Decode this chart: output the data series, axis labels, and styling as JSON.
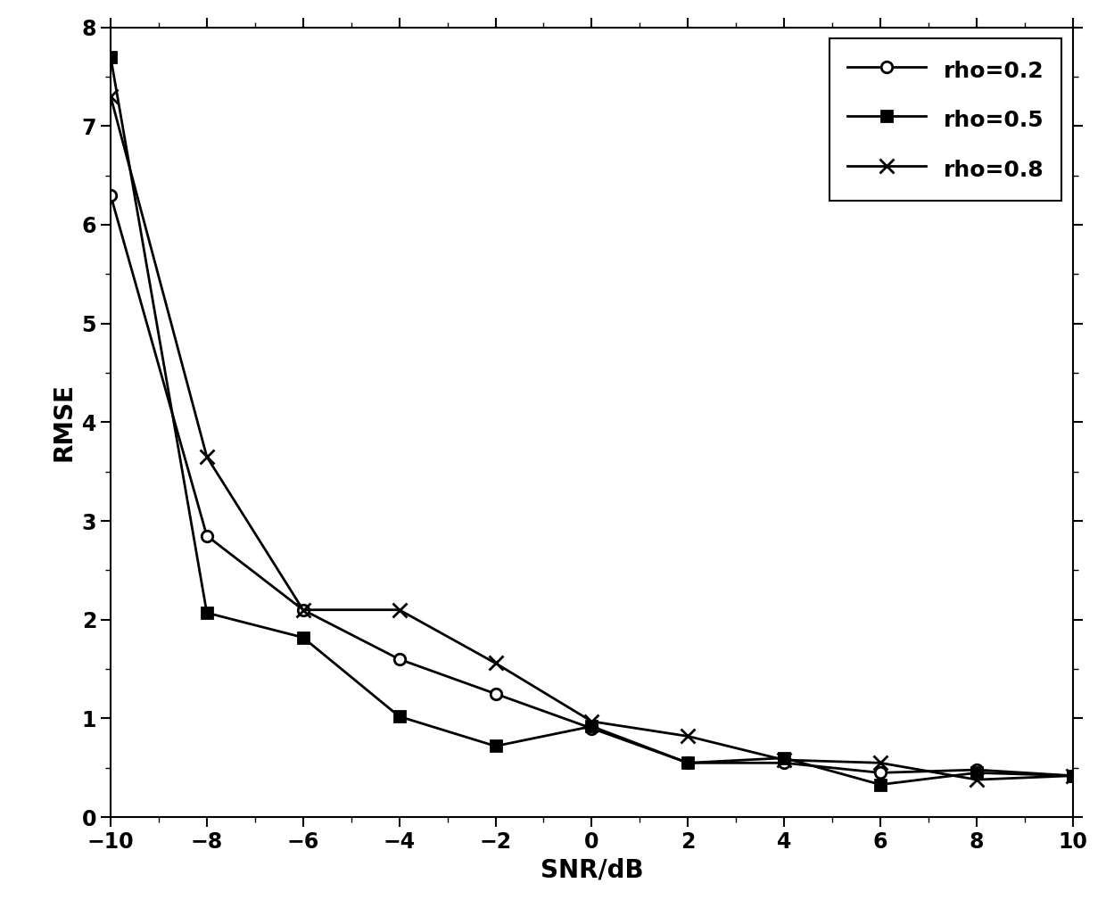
{
  "x": [
    -10,
    -8,
    -6,
    -4,
    -2,
    0,
    2,
    4,
    6,
    8,
    10
  ],
  "rho02": [
    6.3,
    2.85,
    2.1,
    1.6,
    1.25,
    0.9,
    0.55,
    0.55,
    0.45,
    0.48,
    0.42
  ],
  "rho05": [
    7.7,
    2.07,
    1.82,
    1.02,
    0.72,
    0.92,
    0.55,
    0.6,
    0.33,
    0.45,
    0.42
  ],
  "rho08": [
    7.3,
    3.65,
    2.1,
    2.1,
    1.56,
    0.97,
    0.82,
    0.58,
    0.55,
    0.38,
    0.42
  ],
  "xlabel": "SNR/dB",
  "ylabel": "RMSE",
  "xlim": [
    -10,
    10
  ],
  "ylim": [
    0,
    8
  ],
  "yticks": [
    0,
    1,
    2,
    3,
    4,
    5,
    6,
    7,
    8
  ],
  "xticks": [
    -10,
    -8,
    -6,
    -4,
    -2,
    0,
    2,
    4,
    6,
    8,
    10
  ],
  "legend_labels": [
    "rho=0.2",
    "rho=0.5",
    "rho=0.8"
  ],
  "line_color": "#000000",
  "markers": [
    "o",
    "s",
    "x"
  ],
  "markersize": [
    9,
    8,
    11
  ],
  "linewidth": 2.0,
  "legend_loc": "upper right",
  "legend_fontsize": 18,
  "axis_fontsize": 20,
  "tick_fontsize": 17
}
